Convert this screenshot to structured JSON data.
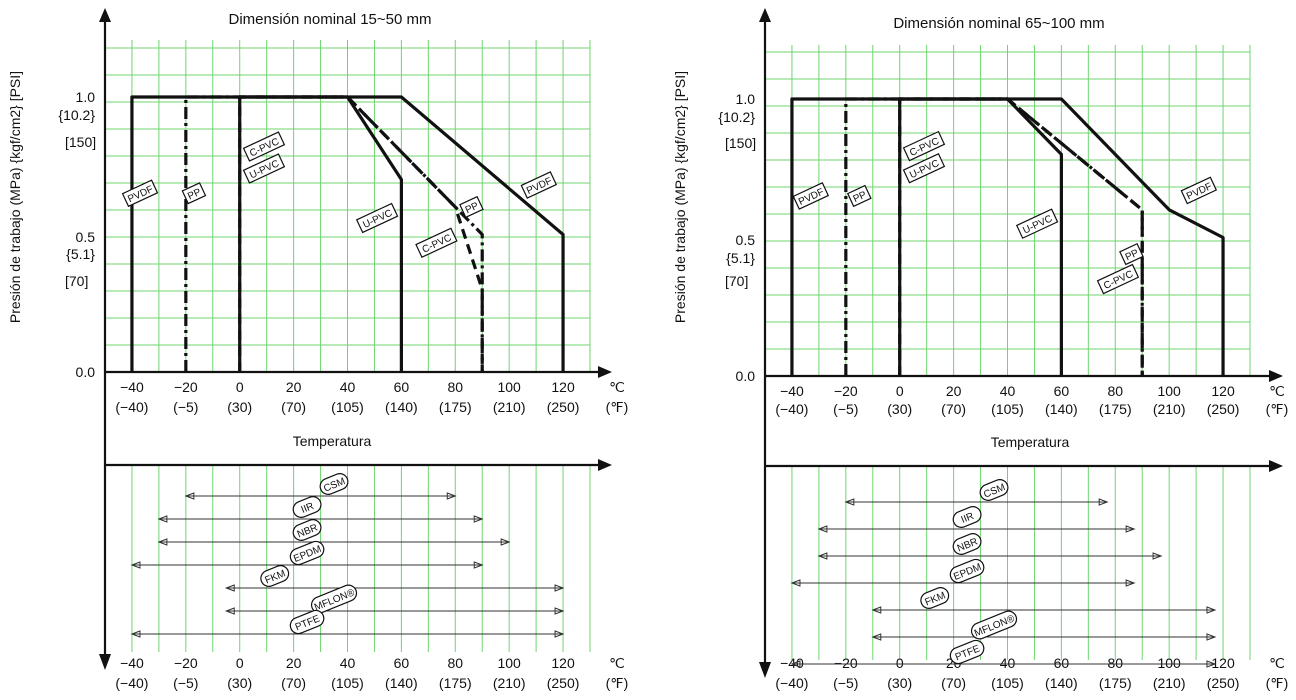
{
  "yaxis_label": "Presión de trabajo (MPa) {kgf/cm2} [PSI]",
  "x_axis_title": "Temperatura",
  "temp_unit_c": "℃",
  "temp_unit_f": "(℉)",
  "colors": {
    "grid": "#6fd66f",
    "line": "#111111"
  },
  "chart_data": [
    {
      "id": "left",
      "type": "line",
      "title": "Dimensión nominal 15~50 mm",
      "x_ticks_c": [
        "−40",
        "−20",
        "0",
        "20",
        "40",
        "60",
        "80",
        "100",
        "120"
      ],
      "x_ticks_f": [
        "(−40)",
        "(−5)",
        "(30)",
        "(70)",
        "(105)",
        "(140)",
        "(175)",
        "(210)",
        "(250)"
      ],
      "y_ticks": [
        {
          "value": 1.0,
          "labels": [
            "1.0",
            "{10.2}",
            "[150]"
          ]
        },
        {
          "value": 0.5,
          "labels": [
            "0.5",
            "{5.1}",
            "[70]"
          ]
        },
        {
          "value": 0.0,
          "labels": [
            "0.0"
          ]
        }
      ],
      "xlim": [
        -40,
        120
      ],
      "ylim": [
        0,
        1.0
      ],
      "series": [
        {
          "name": "PVDF",
          "style": "solid",
          "x": [
            -40,
            -40,
            60,
            120,
            120
          ],
          "y": [
            0,
            1.0,
            1.0,
            0.5,
            0
          ]
        },
        {
          "name": "PP",
          "style": "dashdot",
          "x": [
            -20,
            -20,
            40,
            80,
            90,
            90
          ],
          "y": [
            0,
            1.0,
            1.0,
            0.6,
            0.5,
            0
          ]
        },
        {
          "name": "C-PVC",
          "style": "dashed",
          "x": [
            0,
            0,
            40,
            80,
            90,
            90
          ],
          "y": [
            0,
            1.0,
            1.0,
            0.6,
            0.3,
            0
          ]
        },
        {
          "name": "U-PVC",
          "style": "solid",
          "x": [
            0,
            0,
            40,
            60,
            60
          ],
          "y": [
            0,
            1.0,
            1.0,
            0.7,
            0
          ]
        }
      ],
      "material_labels": [
        {
          "text": "PVDF",
          "x": -37,
          "y": 0.65
        },
        {
          "text": "PP",
          "x": -17,
          "y": 0.65
        },
        {
          "text": "C-PVC",
          "x": 9,
          "y": 0.82
        },
        {
          "text": "U-PVC",
          "x": 9,
          "y": 0.74
        },
        {
          "text": "U-PVC",
          "x": 51,
          "y": 0.56
        },
        {
          "text": "C-PVC",
          "x": 73,
          "y": 0.47
        },
        {
          "text": "PP",
          "x": 86,
          "y": 0.6
        },
        {
          "text": "PVDF",
          "x": 111,
          "y": 0.68
        }
      ],
      "seals": [
        {
          "name": "CSM",
          "xmin": -20,
          "xmax": 80,
          "label_x": 35
        },
        {
          "name": "IIR",
          "xmin": -30,
          "xmax": 90,
          "label_x": 25
        },
        {
          "name": "NBR",
          "xmin": -30,
          "xmax": 100,
          "label_x": 25
        },
        {
          "name": "EPDM",
          "xmin": -40,
          "xmax": 90,
          "label_x": 25
        },
        {
          "name": "FKM",
          "xmin": -5,
          "xmax": 120,
          "label_x": 13
        },
        {
          "name": "MFLON®",
          "xmin": -5,
          "xmax": 120,
          "label_x": 35
        },
        {
          "name": "PTFE",
          "xmin": -40,
          "xmax": 120,
          "label_x": 25
        }
      ]
    },
    {
      "id": "right",
      "type": "line",
      "title": "Dimensión nominal 65~100 mm",
      "x_ticks_c": [
        "−40",
        "−20",
        "0",
        "20",
        "40",
        "60",
        "80",
        "100",
        "120"
      ],
      "x_ticks_f": [
        "(−40)",
        "(−5)",
        "(30)",
        "(70)",
        "(105)",
        "(140)",
        "(175)",
        "(210)",
        "(250)"
      ],
      "y_ticks": [
        {
          "value": 1.0,
          "labels": [
            "1.0",
            "{10.2}",
            "[150]"
          ]
        },
        {
          "value": 0.5,
          "labels": [
            "0.5",
            "{5.1}",
            "[70]"
          ]
        },
        {
          "value": 0.0,
          "labels": [
            "0.0"
          ]
        }
      ],
      "xlim": [
        -40,
        120
      ],
      "ylim": [
        0,
        1.0
      ],
      "series": [
        {
          "name": "PVDF",
          "style": "solid",
          "x": [
            -40,
            -40,
            60,
            100,
            120,
            120
          ],
          "y": [
            0,
            1.0,
            1.0,
            0.6,
            0.5,
            0
          ]
        },
        {
          "name": "PP",
          "style": "dashdot",
          "x": [
            -20,
            -20,
            40,
            90,
            90
          ],
          "y": [
            0,
            1.0,
            1.0,
            0.6,
            0
          ]
        },
        {
          "name": "C-PVC",
          "style": "dashed",
          "x": [
            0,
            0,
            40,
            90,
            90
          ],
          "y": [
            0,
            1.0,
            1.0,
            0.6,
            0
          ]
        },
        {
          "name": "U-PVC",
          "style": "solid",
          "x": [
            0,
            0,
            40,
            60,
            60
          ],
          "y": [
            0,
            1.0,
            1.0,
            0.8,
            0
          ]
        }
      ],
      "material_labels": [
        {
          "text": "PVDF",
          "x": -33,
          "y": 0.65
        },
        {
          "text": "PP",
          "x": -15,
          "y": 0.65
        },
        {
          "text": "C-PVC",
          "x": 9,
          "y": 0.83
        },
        {
          "text": "U-PVC",
          "x": 9,
          "y": 0.75
        },
        {
          "text": "U-PVC",
          "x": 51,
          "y": 0.55
        },
        {
          "text": "PP",
          "x": 86,
          "y": 0.44
        },
        {
          "text": "C-PVC",
          "x": 81,
          "y": 0.35
        },
        {
          "text": "PVDF",
          "x": 111,
          "y": 0.67
        }
      ],
      "seals": [
        {
          "name": "CSM",
          "xmin": -20,
          "xmax": 77,
          "label_x": 35
        },
        {
          "name": "IIR",
          "xmin": -30,
          "xmax": 87,
          "label_x": 25
        },
        {
          "name": "NBR",
          "xmin": -30,
          "xmax": 97,
          "label_x": 25
        },
        {
          "name": "EPDM",
          "xmin": -40,
          "xmax": 87,
          "label_x": 25
        },
        {
          "name": "FKM",
          "xmin": -10,
          "xmax": 117,
          "label_x": 13
        },
        {
          "name": "MFLON®",
          "xmin": -10,
          "xmax": 117,
          "label_x": 35
        },
        {
          "name": "PTFE",
          "xmin": -40,
          "xmax": 117,
          "label_x": 25
        }
      ]
    }
  ]
}
